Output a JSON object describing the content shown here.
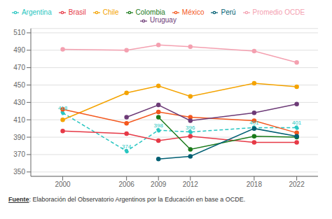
{
  "chart_data": {
    "type": "line",
    "x": [
      2000,
      2006,
      2009,
      2012,
      2018,
      2022
    ],
    "series": [
      {
        "name": "Argentina",
        "color": "#29c6c1",
        "line_style": "dashed",
        "marker": "circle",
        "data_labels": true,
        "values": [
          418,
          374,
          398,
          396,
          401,
          401
        ]
      },
      {
        "name": "Brasil",
        "color": "#e63946",
        "line_style": "solid",
        "marker": "circle",
        "values": [
          397,
          394,
          386,
          391,
          384,
          384
        ]
      },
      {
        "name": "Chile",
        "color": "#f4a300",
        "line_style": "solid",
        "marker": "circle",
        "values": [
          410,
          441,
          449,
          437,
          452,
          448
        ]
      },
      {
        "name": "Colombia",
        "color": "#1a7a1a",
        "line_style": "solid",
        "marker": "circle",
        "values": [
          null,
          null,
          413,
          376,
          391,
          390
        ]
      },
      {
        "name": "México",
        "color": "#f4581e",
        "line_style": "solid",
        "marker": "circle",
        "values": [
          422,
          406,
          419,
          413,
          409,
          395
        ]
      },
      {
        "name": "Perú",
        "color": "#005f73",
        "line_style": "solid",
        "marker": "circle",
        "values": [
          null,
          null,
          365,
          368,
          400,
          391
        ]
      },
      {
        "name": "Uruguay",
        "color": "#6d3b77",
        "line_style": "solid",
        "marker": "circle",
        "values": [
          null,
          413,
          427,
          409,
          418,
          428
        ]
      },
      {
        "name": "Promedio OCDE",
        "color": "#f4a0b0",
        "line_style": "solid",
        "marker": "circle",
        "values": [
          491,
          490,
          496,
          494,
          489,
          476
        ]
      }
    ],
    "xlim": [
      1997,
      2024
    ],
    "xticks": [
      2000,
      2006,
      2009,
      2012,
      2018,
      2022
    ],
    "ylim": [
      345,
      515
    ],
    "yticks": [
      350,
      370,
      390,
      410,
      430,
      450,
      470,
      490,
      510
    ],
    "grid": true,
    "legend": "top",
    "annotations": [
      "Fuente",
      ": Elaboración del Observatorio Argentinos por la Educación en base a OCDE."
    ]
  }
}
